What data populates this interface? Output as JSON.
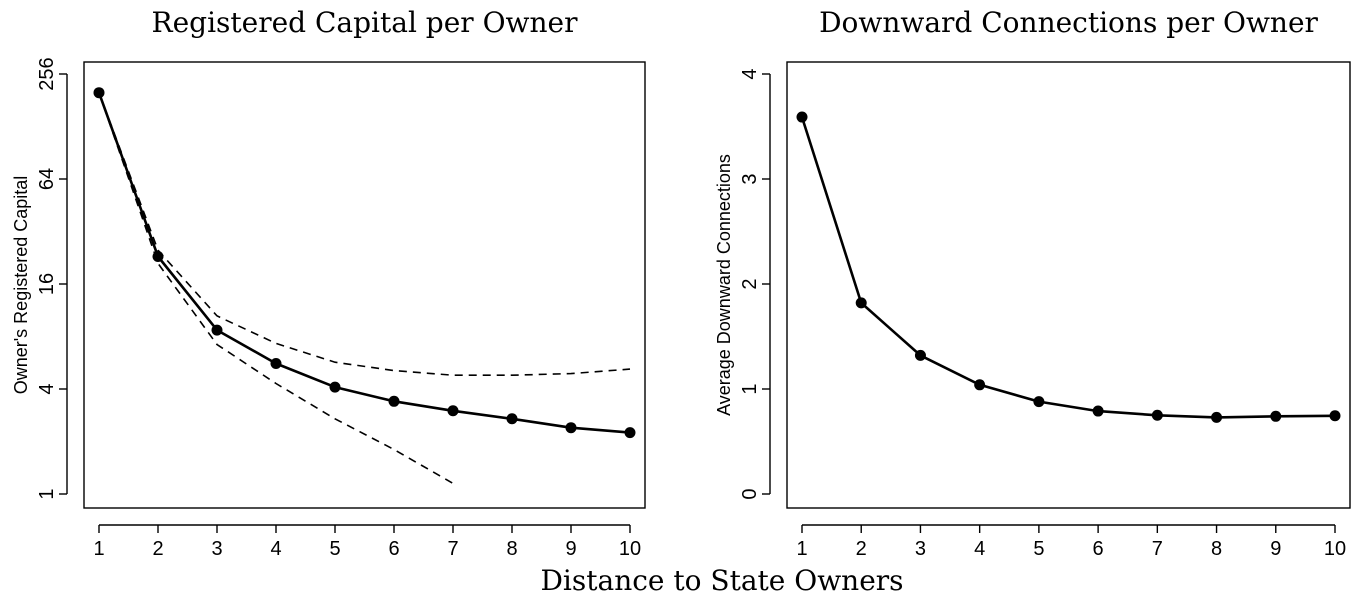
{
  "xlabel": "Distance to State Owners",
  "chart_data": [
    {
      "type": "line",
      "title": "Registered Capital per Owner",
      "ylabel": "Owner's Registered Capital",
      "yscale": "log2",
      "ylim": [
        1,
        256
      ],
      "yticks": [
        1,
        4,
        16,
        64,
        256
      ],
      "ytick_labels": [
        "1",
        "4",
        "16",
        "64",
        "256"
      ],
      "xlim": [
        1,
        10
      ],
      "xticks": [
        1,
        2,
        3,
        4,
        5,
        6,
        7,
        8,
        9,
        10
      ],
      "xtick_labels": [
        "1",
        "2",
        "3",
        "4",
        "5",
        "6",
        "7",
        "8",
        "9",
        "10"
      ],
      "grid": false,
      "series": [
        {
          "style": "solid-marker",
          "x": [
            1,
            2,
            3,
            4,
            5,
            6,
            7,
            8,
            9,
            10
          ],
          "y": [
            200,
            23,
            8.7,
            5.6,
            4.1,
            3.4,
            3.0,
            2.7,
            2.4,
            2.25
          ]
        },
        {
          "style": "dashed-upper",
          "x": [
            1,
            2,
            3,
            4,
            5,
            6,
            7,
            8,
            9,
            10
          ],
          "y": [
            200,
            25,
            10.5,
            7.3,
            5.7,
            5.1,
            4.8,
            4.8,
            4.9,
            5.2
          ]
        },
        {
          "style": "dashed-lower",
          "x": [
            1,
            2,
            3,
            4,
            5,
            6,
            7
          ],
          "y": [
            200,
            21,
            7.2,
            4.3,
            2.7,
            1.8,
            1.15
          ]
        }
      ]
    },
    {
      "type": "line",
      "title": "Downward Connections per Owner",
      "ylabel": "Average Downward Connections",
      "yscale": "linear",
      "ylim": [
        0,
        4
      ],
      "yticks": [
        0,
        1,
        2,
        3,
        4
      ],
      "ytick_labels": [
        "0",
        "1",
        "2",
        "3",
        "4"
      ],
      "xlim": [
        1,
        10
      ],
      "xticks": [
        1,
        2,
        3,
        4,
        5,
        6,
        7,
        8,
        9,
        10
      ],
      "xtick_labels": [
        "1",
        "2",
        "3",
        "4",
        "5",
        "6",
        "7",
        "8",
        "9",
        "10"
      ],
      "grid": false,
      "series": [
        {
          "style": "solid-marker",
          "x": [
            1,
            2,
            3,
            4,
            5,
            6,
            7,
            8,
            9,
            10
          ],
          "y": [
            3.59,
            1.82,
            1.32,
            1.04,
            0.88,
            0.79,
            0.75,
            0.73,
            0.74,
            0.745
          ]
        }
      ]
    }
  ]
}
